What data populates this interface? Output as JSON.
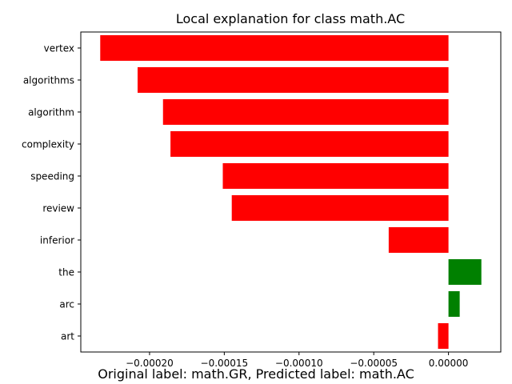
{
  "chart_data": {
    "type": "bar",
    "orientation": "horizontal",
    "title": "Local explanation for class math.AC",
    "categories": [
      "vertex",
      "algorithms",
      "algorithm",
      "complexity",
      "speeding",
      "review",
      "inferior",
      "the",
      "arc",
      "art"
    ],
    "values": [
      -0.000233,
      -0.000208,
      -0.000191,
      -0.000186,
      -0.000151,
      -0.000145,
      -4e-05,
      2.2e-05,
      7.5e-06,
      -7e-06
    ],
    "xlim": [
      -0.000246,
      3.5e-05
    ],
    "xticks": [
      -0.0002,
      -0.00015,
      -0.0001,
      -5e-05,
      0.0
    ],
    "xtick_labels": [
      "−0.00020",
      "−0.00015",
      "−0.00010",
      "−0.00005",
      "0.00000"
    ],
    "grid": false,
    "colors": {
      "negative": "#ff0000",
      "positive": "#008000"
    }
  },
  "caption": "Original label: math.GR, Predicted label: math.AC"
}
